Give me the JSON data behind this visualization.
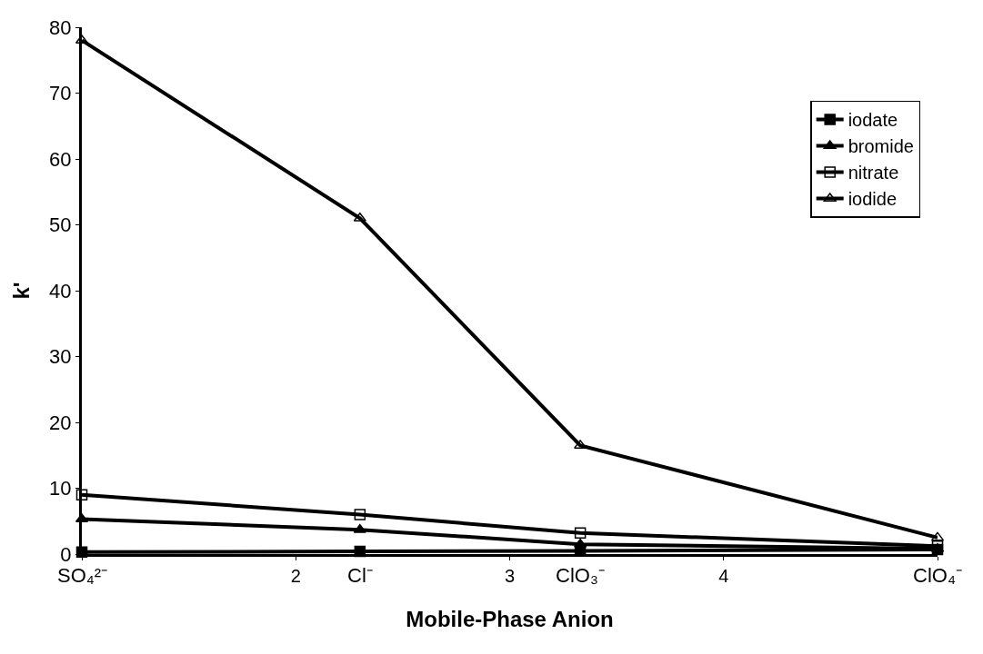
{
  "chart_data": {
    "type": "line",
    "xlabel": "Mobile-Phase Anion",
    "ylabel": "k'",
    "x": [
      1,
      2.3,
      3.33,
      5
    ],
    "xlim": [
      1,
      5
    ],
    "xticks": [
      {
        "value": 1,
        "label": null
      },
      2,
      3,
      4,
      {
        "value": 5,
        "label": null
      }
    ],
    "annotations": [
      "SO₄²⁻",
      "Cl⁻",
      "ClO₃⁻",
      "ClO₄⁻"
    ],
    "ylim": [
      0,
      80
    ],
    "yticks": [
      0,
      10,
      20,
      30,
      40,
      50,
      60,
      70,
      80
    ],
    "series": [
      {
        "name": "iodate",
        "color": "#000000",
        "marker": "square",
        "values": [
          0.3,
          0.4,
          0.5,
          0.7
        ]
      },
      {
        "name": "bromide",
        "color": "#000000",
        "marker": "triangle",
        "values": [
          5.3,
          3.7,
          1.5,
          0.8
        ]
      },
      {
        "name": "nitrate",
        "color": "#000000",
        "marker": "square-open",
        "values": [
          9,
          6,
          3.2,
          1.2
        ]
      },
      {
        "name": "iodide",
        "color": "#000000",
        "marker": "triangle-open",
        "values": [
          78,
          51,
          16.5,
          2.5
        ]
      }
    ],
    "legend": "right"
  }
}
